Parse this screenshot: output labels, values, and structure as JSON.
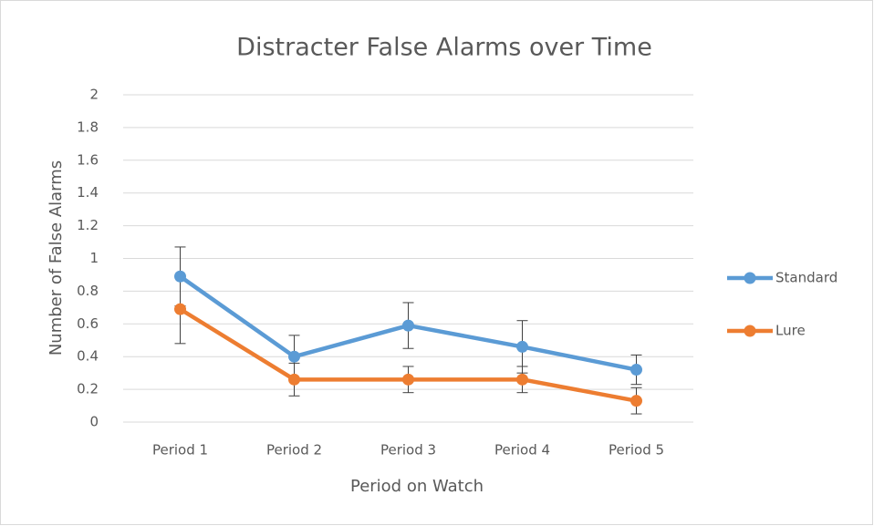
{
  "chart_data": {
    "type": "line",
    "title": "Distracter False Alarms over Time",
    "x_label": "Period on Watch",
    "y_label": "Number of False Alarms",
    "categories": [
      "Period 1",
      "Period 2",
      "Period 3",
      "Period 4",
      "Period 5"
    ],
    "series": [
      {
        "name": "Standard",
        "color": "#5b9bd5",
        "values": [
          0.89,
          0.4,
          0.59,
          0.46,
          0.32
        ],
        "errors": [
          0.18,
          0.13,
          0.14,
          0.16,
          0.09
        ]
      },
      {
        "name": "Lure",
        "color": "#ed7d31",
        "values": [
          0.69,
          0.26,
          0.26,
          0.26,
          0.13
        ],
        "errors": [
          0.21,
          0.1,
          0.08,
          0.08,
          0.08
        ]
      }
    ],
    "ylim": [
      0,
      2
    ],
    "yticks": [
      0,
      0.2,
      0.4,
      0.6,
      0.8,
      1,
      1.2,
      1.4,
      1.6,
      1.8,
      2
    ],
    "grid": true,
    "legend": "right"
  }
}
